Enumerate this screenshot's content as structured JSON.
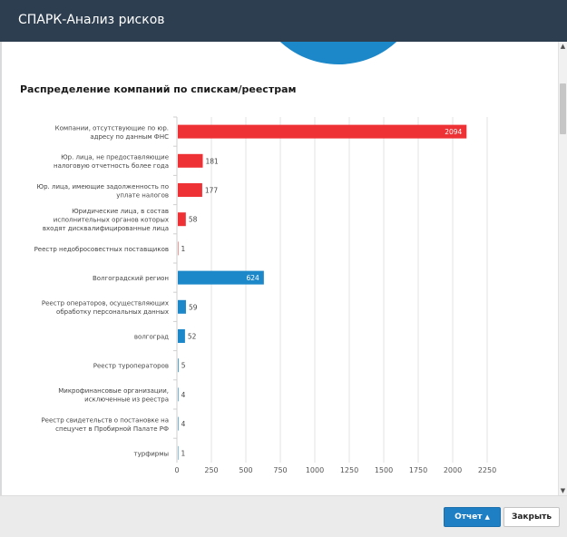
{
  "window": {
    "title": "СПАРК-Анализ рисков"
  },
  "section": {
    "title": "Распределение компаний по спискам/реестрам"
  },
  "footer": {
    "report_label": "Отчет",
    "close_label": "Закрыть"
  },
  "icons": {
    "report_caret": "caret-up-icon",
    "scroll_up": "arrow-up-icon",
    "scroll_down": "arrow-down-icon"
  },
  "colors": {
    "red": "#ee3135",
    "blue": "#1d88c9",
    "titlebar": "#2d3e50"
  },
  "chart_data": {
    "type": "bar",
    "orientation": "horizontal",
    "title": "Распределение компаний по спискам/реестрам",
    "xlabel": "",
    "ylabel": "",
    "xlim": [
      0,
      2250
    ],
    "xticks": [
      0,
      250,
      500,
      750,
      1000,
      1250,
      1500,
      1750,
      2000,
      2250
    ],
    "grid": true,
    "categories": [
      [
        "Компании, отсутствующие по юр.",
        "адресу по данным ФНС"
      ],
      [
        "Юр. лица, не предоставляющие",
        "налоговую отчетность более года"
      ],
      [
        "Юр. лица, имеющие задолженность по",
        "уплате налогов"
      ],
      [
        "Юридические лица, в состав",
        "исполнительных органов которых",
        "входят дисквалифицированные лица"
      ],
      [
        "Реестр недобросовестных поставщиков"
      ],
      [
        "Волгоградский регион"
      ],
      [
        "Реестр операторов, осуществляющих",
        "обработку персональных данных"
      ],
      [
        "волгоград"
      ],
      [
        "Реестр туроператоров"
      ],
      [
        "Микрофинансовые организации,",
        "исключенные из реестра"
      ],
      [
        "Реестр свидетельств о постановке на",
        "спецучет в Пробирной Палате РФ"
      ],
      [
        "турфирмы"
      ]
    ],
    "values": [
      2094,
      181,
      177,
      58,
      1,
      624,
      59,
      52,
      5,
      4,
      4,
      1
    ],
    "value_labels": [
      "2094",
      "181",
      "177",
      "58",
      "1",
      "624",
      "59",
      "52",
      "5",
      "4",
      "4",
      "1"
    ],
    "bar_colors": [
      "#ee3135",
      "#ee3135",
      "#ee3135",
      "#ee3135",
      "#ee3135",
      "#1d88c9",
      "#1d88c9",
      "#1d88c9",
      "#1d88c9",
      "#1d88c9",
      "#1d88c9",
      "#1d88c9"
    ]
  }
}
